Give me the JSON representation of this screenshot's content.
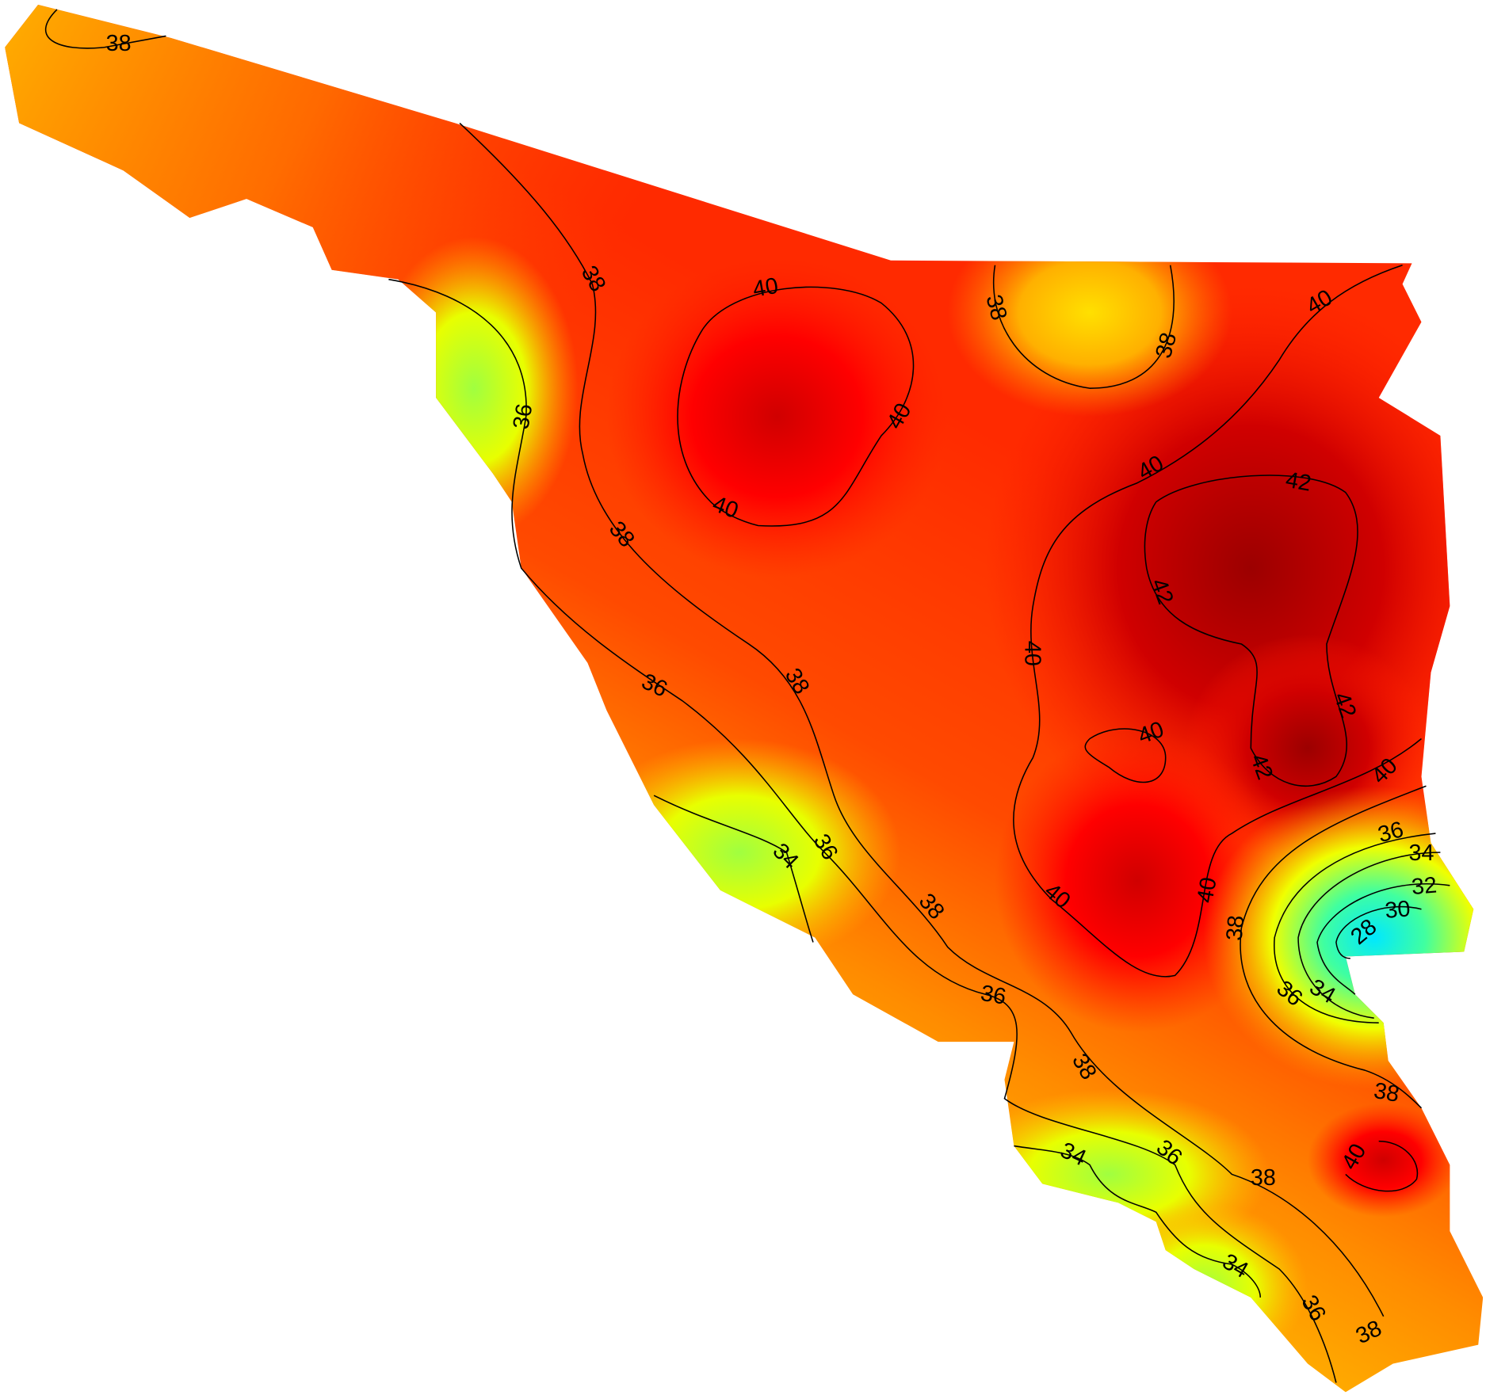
{
  "contour_labels": [
    38,
    38,
    40,
    38,
    38,
    40,
    36,
    40,
    40,
    40,
    42,
    38,
    42,
    40,
    38,
    36,
    42,
    40,
    42,
    40,
    36,
    36,
    34,
    34,
    32,
    40,
    38,
    40,
    30,
    38,
    28,
    34,
    36,
    36,
    38,
    38,
    34,
    36,
    40,
    38,
    34,
    36,
    38
  ]
}
